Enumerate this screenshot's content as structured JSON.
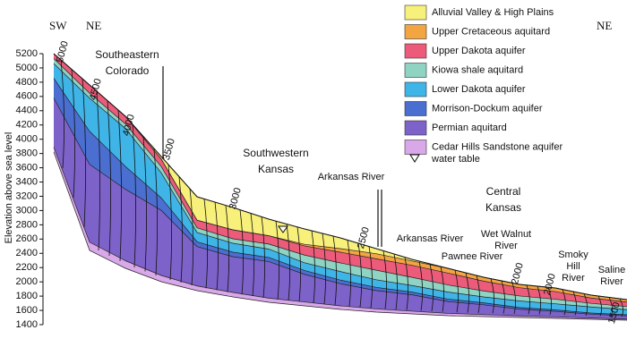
{
  "header": {
    "left_sw": "SW",
    "left_ne": "NE",
    "right_ne": "NE"
  },
  "axis": {
    "label": "Elevation above sea level",
    "lim": [
      1400,
      5200
    ],
    "ticks": [
      1400,
      1600,
      1800,
      2000,
      2200,
      2400,
      2600,
      2800,
      3000,
      3200,
      3400,
      3600,
      3800,
      4000,
      4200,
      4400,
      4600,
      4800,
      5000,
      5200
    ]
  },
  "places": [
    {
      "lines": [
        "Southeastern",
        "Colorado"
      ]
    },
    {
      "lines": [
        "Southwestern",
        "Kansas"
      ]
    },
    {
      "lines": [
        "Arkansas River"
      ]
    },
    {
      "lines": [
        "Central",
        "Kansas"
      ]
    },
    {
      "lines": [
        "Arkansas River"
      ]
    },
    {
      "lines": [
        "Pawnee River"
      ]
    },
    {
      "lines": [
        "Wet Walnut",
        "River"
      ]
    },
    {
      "lines": [
        "Smoky",
        "Hill",
        "River"
      ]
    },
    {
      "lines": [
        "Saline",
        "River"
      ]
    }
  ],
  "contours": [
    "5000",
    "4500",
    "4000",
    "3500",
    "3000",
    "2500",
    "2000",
    "2000",
    "1500"
  ],
  "legend": {
    "items": [
      {
        "label": "Alluvial Valley & High Plains",
        "color": "#f7f07a"
      },
      {
        "label": "Upper Cretaceous aquitard",
        "color": "#f2a541"
      },
      {
        "label": "Upper Dakota aquifer",
        "color": "#ec5b7a"
      },
      {
        "label": "Kiowa shale aquitard",
        "color": "#8fd3c2"
      },
      {
        "label": "Lower Dakota aquifer",
        "color": "#3fb4e6"
      },
      {
        "label": "Morrison-Dockum aquifer",
        "color": "#4a6fd0"
      },
      {
        "label": "Permian aquitard",
        "color": "#7d62c9"
      },
      {
        "label": "Cedar Hills Sandstone aquifer",
        "color": "#d9a8e8"
      }
    ],
    "water_table": "water table"
  }
}
